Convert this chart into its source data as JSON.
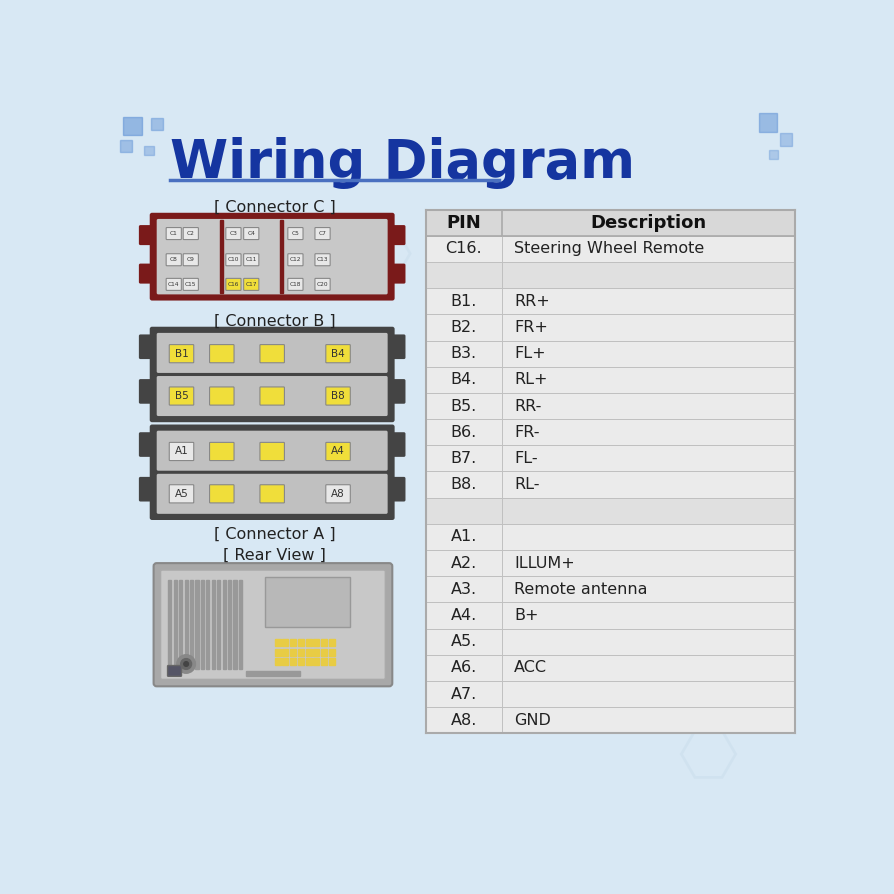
{
  "title": "Wiring Diagram",
  "title_color": "#1535a0",
  "bg_color": "#d8e8f4",
  "table_rows": [
    {
      "pin": "C16.",
      "desc": "Steering Wheel Remote"
    },
    {
      "pin": "",
      "desc": ""
    },
    {
      "pin": "B1.",
      "desc": "RR+"
    },
    {
      "pin": "B2.",
      "desc": "FR+"
    },
    {
      "pin": "B3.",
      "desc": "FL+"
    },
    {
      "pin": "B4.",
      "desc": "RL+"
    },
    {
      "pin": "B5.",
      "desc": "RR-"
    },
    {
      "pin": "B6.",
      "desc": "FR-"
    },
    {
      "pin": "B7.",
      "desc": "FL-"
    },
    {
      "pin": "B8.",
      "desc": "RL-"
    },
    {
      "pin": "",
      "desc": ""
    },
    {
      "pin": "A1.",
      "desc": ""
    },
    {
      "pin": "A2.",
      "desc": "ILLUM+"
    },
    {
      "pin": "A3.",
      "desc": "Remote antenna"
    },
    {
      "pin": "A4.",
      "desc": "B+"
    },
    {
      "pin": "A5.",
      "desc": ""
    },
    {
      "pin": "A6.",
      "desc": "ACC"
    },
    {
      "pin": "A7.",
      "desc": ""
    },
    {
      "pin": "A8.",
      "desc": "GND"
    }
  ],
  "connector_c_color": "#7a1a1a",
  "pin_yellow": "#f0de3a",
  "pin_white": "#e8e8e8",
  "pin_label_color": "#333333",
  "table_header_bg": "#d8d8d8",
  "table_row_bg": "#ebebeb",
  "table_empty_bg": "#e0e0e0",
  "table_border": "#aaaaaa",
  "connector_dark": "#444444",
  "connector_body": "#c4c4c4",
  "connector_inner": "#c8c8c8"
}
